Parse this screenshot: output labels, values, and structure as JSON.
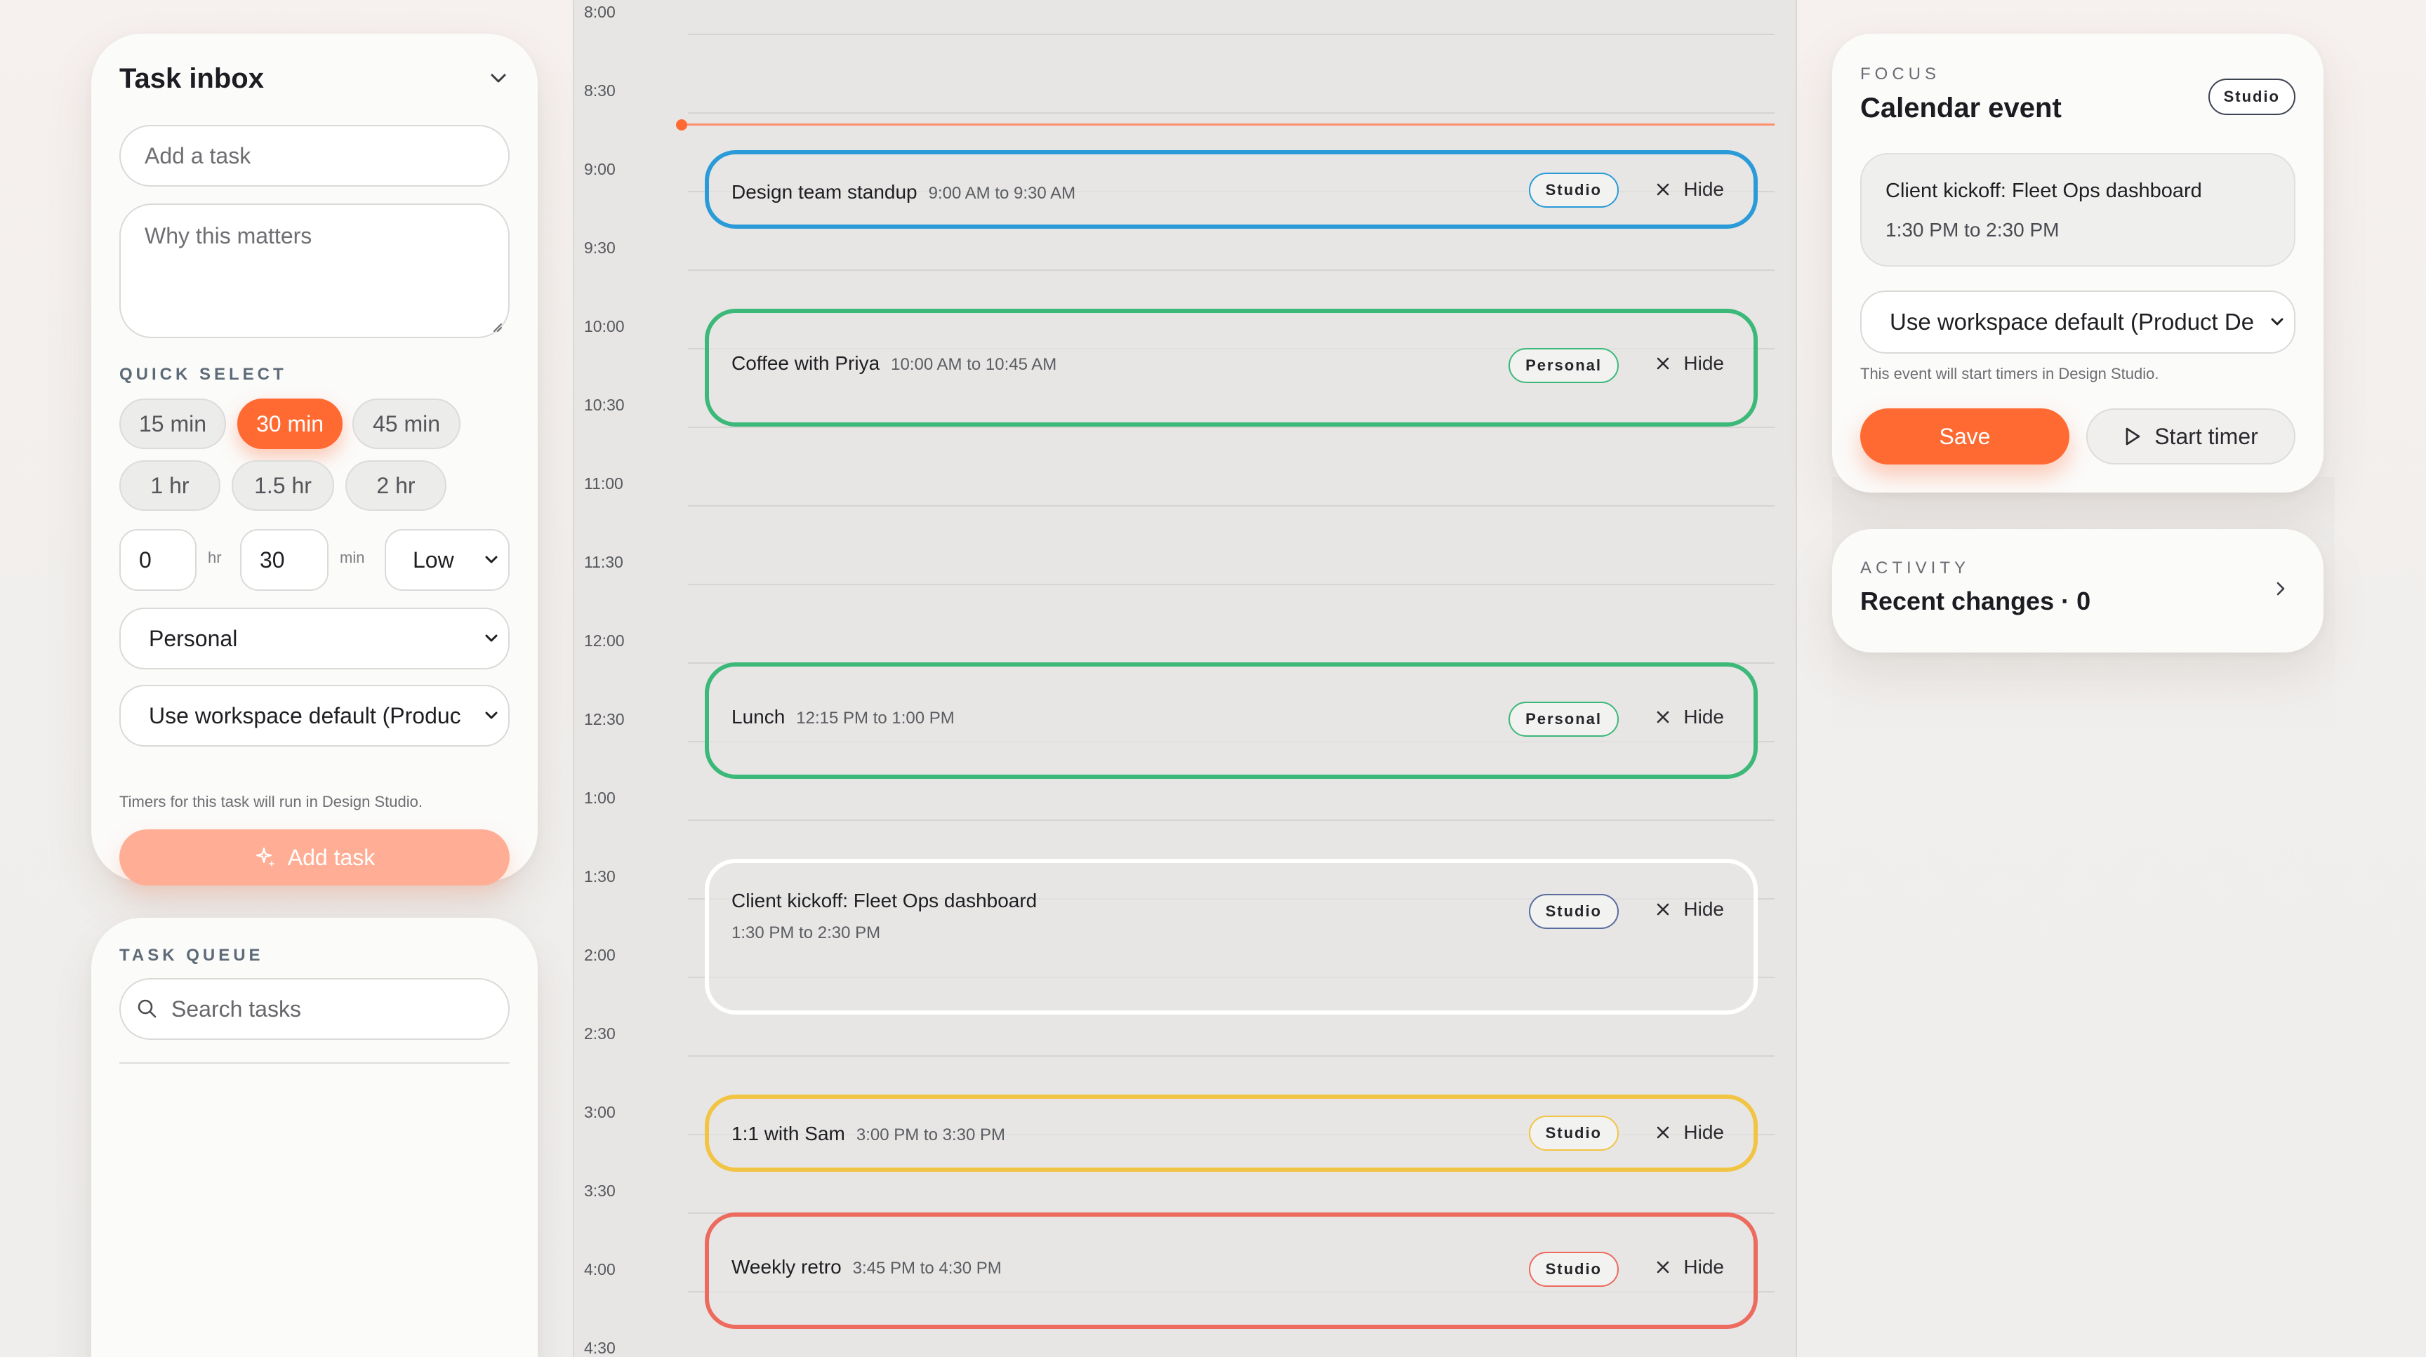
{
  "inbox": {
    "title": "Task inbox",
    "task_placeholder": "Add a task",
    "why_placeholder": "Why this matters",
    "quick_select_label": "QUICK SELECT",
    "quick_select": [
      "15 min",
      "30 min",
      "45 min",
      "1 hr",
      "1.5 hr",
      "2 hr"
    ],
    "quick_select_active": "30 min",
    "hours_value": "0",
    "hours_unit": "hr",
    "minutes_value": "30",
    "minutes_unit": "min",
    "priority": "Low",
    "project": "Personal",
    "workspace": "Use workspace default (Produc",
    "hint": "Timers for this task will run in Design Studio.",
    "add_button": "Add task"
  },
  "queue": {
    "label": "TASK QUEUE",
    "search_placeholder": "Search tasks"
  },
  "calendar": {
    "times": [
      "8:00",
      "8:30",
      "9:00",
      "9:30",
      "10:00",
      "10:30",
      "11:00",
      "11:30",
      "12:00",
      "12:30",
      "1:00",
      "1:30",
      "2:00",
      "2:30",
      "3:00",
      "3:30",
      "4:00",
      "4:30"
    ],
    "hide_label": "Hide",
    "events": [
      {
        "title": "Design team standup",
        "time": "9:00 AM to 9:30 AM",
        "tag": "Studio",
        "color": "#2a9bd8"
      },
      {
        "title": "Coffee with Priya",
        "time": "10:00 AM to 10:45 AM",
        "tag": "Personal",
        "color": "#3cb878"
      },
      {
        "title": "Lunch",
        "time": "12:15 PM to 1:00 PM",
        "tag": "Personal",
        "color": "#3cb878"
      },
      {
        "title": "Client kickoff: Fleet Ops dashboard",
        "time": "1:30 PM to 2:30 PM",
        "tag": "Studio",
        "color": "#ffffff",
        "tag_color": "#5a6b9e"
      },
      {
        "title": "1:1 with Sam",
        "time": "3:00 PM to 3:30 PM",
        "tag": "Studio",
        "color": "#f2c443"
      },
      {
        "title": "Weekly retro",
        "time": "3:45 PM to 4:30 PM",
        "tag": "Studio",
        "color": "#ec6a5e"
      }
    ]
  },
  "focus": {
    "eyebrow": "FOCUS",
    "title": "Calendar event",
    "badge": "Studio",
    "event_title": "Client kickoff: Fleet Ops dashboard",
    "event_time": "1:30 PM to 2:30 PM",
    "workspace": "Use workspace default (Product De",
    "hint": "This event will start timers in Design Studio.",
    "save": "Save",
    "start_timer": "Start timer"
  },
  "activity": {
    "eyebrow": "ACTIVITY",
    "title": "Recent changes · 0"
  },
  "colors": {
    "accent": "#ff6a33",
    "accent_disabled": "#ffae95",
    "now_line": "#ff8f6a"
  }
}
